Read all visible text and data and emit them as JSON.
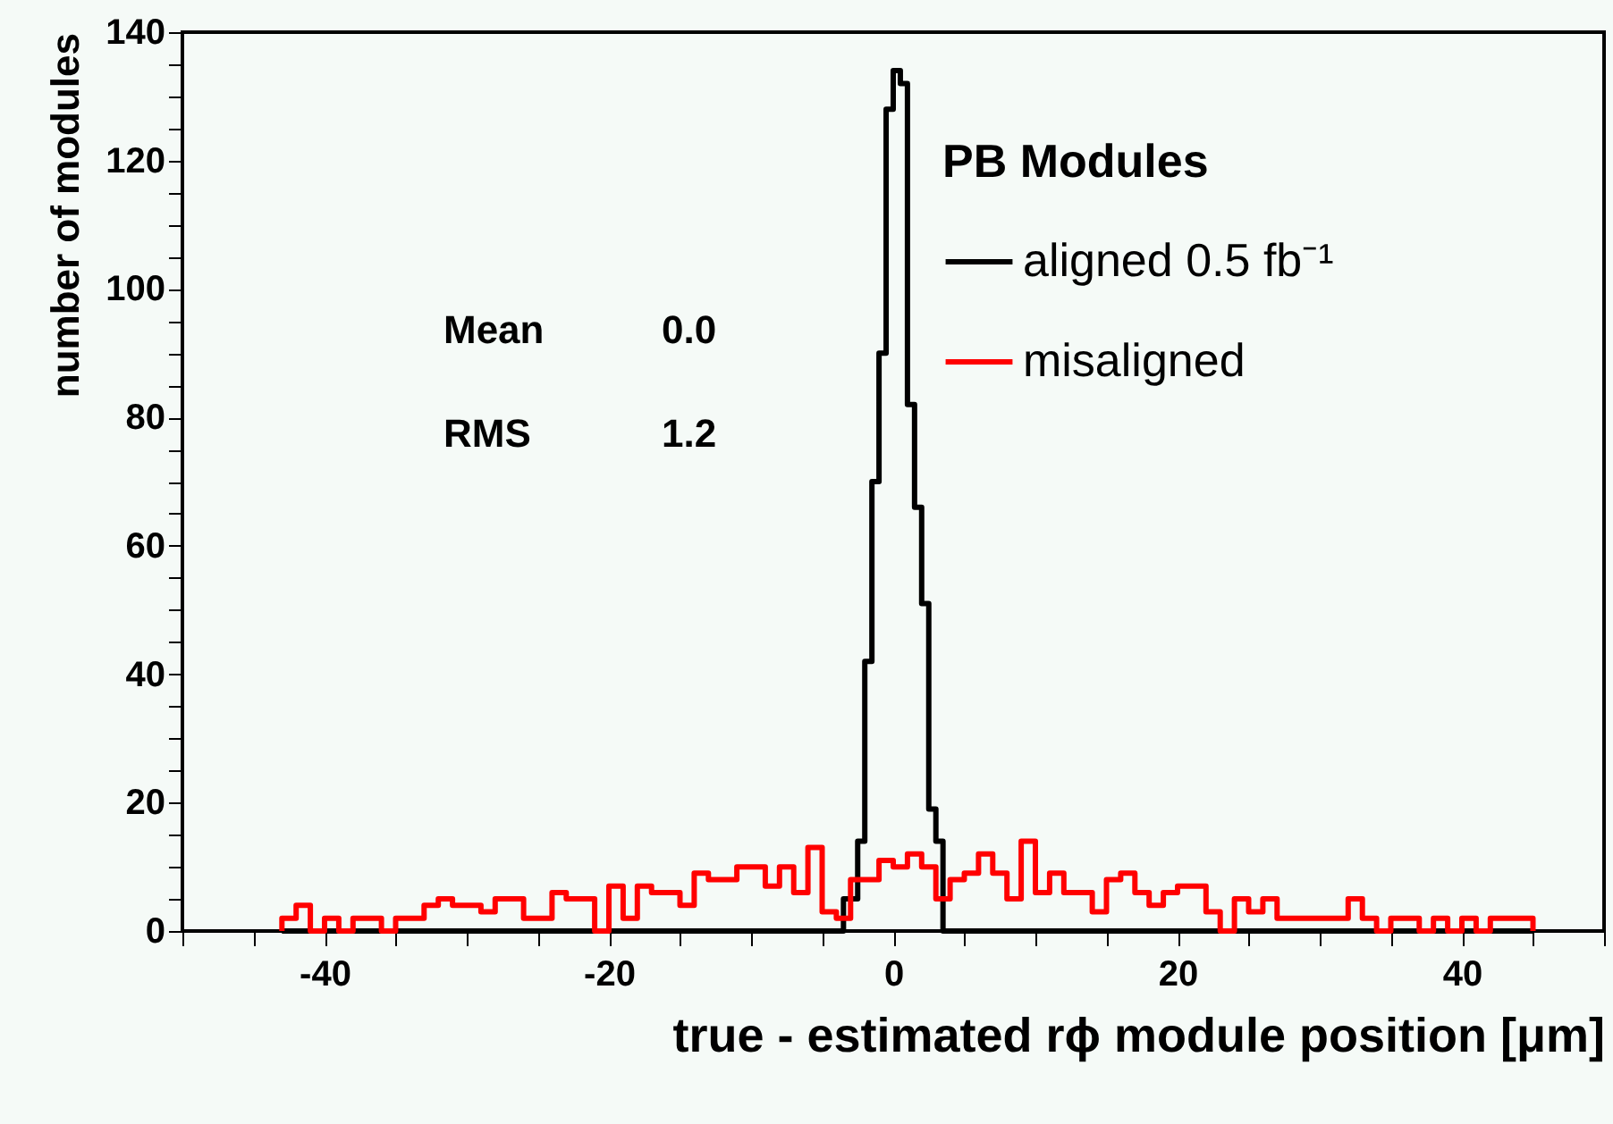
{
  "chart_data": {
    "type": "histogram",
    "xlabel": "true - estimated rϕ module position [μm]",
    "ylabel": "number of modules",
    "legend_title": "PB Modules",
    "legend": "top right",
    "grid": false,
    "annotations": [
      "Mean 0.0",
      "RMS 1.2"
    ],
    "xlim": [
      -50,
      50
    ],
    "ylim": [
      0,
      140
    ],
    "xticks": [
      {
        "value": -50,
        "label": null
      },
      {
        "value": -45,
        "label": null
      },
      -40,
      {
        "value": -35,
        "label": null
      },
      {
        "value": -30,
        "label": null
      },
      {
        "value": -25,
        "label": null
      },
      -20,
      {
        "value": -15,
        "label": null
      },
      {
        "value": -10,
        "label": null
      },
      {
        "value": -5,
        "label": null
      },
      0,
      {
        "value": 5,
        "label": null
      },
      {
        "value": 10,
        "label": null
      },
      {
        "value": 15,
        "label": null
      },
      20,
      {
        "value": 25,
        "label": null
      },
      {
        "value": 30,
        "label": null
      },
      {
        "value": 35,
        "label": null
      },
      40,
      {
        "value": 45,
        "label": null
      },
      {
        "value": 50,
        "label": null
      }
    ],
    "yticks": [
      0,
      {
        "value": 5,
        "label": null
      },
      {
        "value": 10,
        "label": null
      },
      {
        "value": 15,
        "label": null
      },
      20,
      {
        "value": 25,
        "label": null
      },
      {
        "value": 30,
        "label": null
      },
      {
        "value": 35,
        "label": null
      },
      40,
      {
        "value": 45,
        "label": null
      },
      {
        "value": 50,
        "label": null
      },
      {
        "value": 55,
        "label": null
      },
      60,
      {
        "value": 65,
        "label": null
      },
      {
        "value": 70,
        "label": null
      },
      {
        "value": 75,
        "label": null
      },
      80,
      {
        "value": 85,
        "label": null
      },
      {
        "value": 90,
        "label": null
      },
      {
        "value": 95,
        "label": null
      },
      100,
      {
        "value": 105,
        "label": null
      },
      {
        "value": 110,
        "label": null
      },
      {
        "value": 115,
        "label": null
      },
      120,
      {
        "value": 125,
        "label": null
      },
      {
        "value": 130,
        "label": null
      },
      {
        "value": 135,
        "label": null
      },
      140
    ],
    "bins": [
      -43,
      -42.5,
      -42,
      -41.5,
      -41,
      -40.5,
      -40,
      -39.5,
      -39,
      -38.5,
      -38,
      -37.5,
      -37,
      -36.5,
      -36,
      -35.5,
      -35,
      -34.5,
      -34,
      -33.5,
      -33,
      -32.5,
      -32,
      -31.5,
      -31,
      -30.5,
      -30,
      -29.5,
      -29,
      -28.5,
      -28,
      -27.5,
      -27,
      -26.5,
      -26,
      -25.5,
      -25,
      -24.5,
      -24,
      -23.5,
      -23,
      -22.5,
      -22,
      -21.5,
      -21,
      -20.5,
      -20,
      -19.5,
      -19,
      -18.5,
      -18,
      -17.5,
      -17,
      -16.5,
      -16,
      -15.5,
      -15,
      -14.5,
      -14,
      -13.5,
      -13,
      -12.5,
      -12,
      -11.5,
      -11,
      -10.5,
      -10,
      -9.5,
      -9,
      -8.5,
      -8,
      -7.5,
      -7,
      -6.5,
      -6,
      -5.5,
      -5,
      -4.5,
      -4,
      -3.5,
      -3,
      -2.5,
      -2,
      -1.5,
      -1,
      -0.5,
      0,
      0.5,
      1,
      1.5,
      2,
      2.5,
      3,
      3.5,
      4,
      4.5,
      5,
      5.5,
      6,
      6.5,
      7,
      7.5,
      8,
      8.5,
      9,
      9.5,
      10,
      10.5,
      11,
      11.5,
      12,
      12.5,
      13,
      13.5,
      14,
      14.5,
      15,
      15.5,
      16,
      16.5,
      17,
      17.5,
      18,
      18.5,
      19,
      19.5,
      20,
      20.5,
      21,
      21.5,
      22,
      22.5,
      23,
      23.5,
      24,
      24.5,
      25,
      25.5,
      26,
      26.5,
      27,
      27.5,
      28,
      28.5,
      29,
      29.5,
      30,
      30.5,
      31,
      31.5,
      32,
      32.5,
      33,
      33.5,
      34,
      34.5,
      35,
      35.5,
      36,
      36.5,
      37,
      37.5,
      38,
      38.5,
      39,
      39.5,
      40,
      40.5,
      41,
      41.5,
      42,
      42.5,
      43,
      43.5,
      44,
      44.5,
      45
    ],
    "series": [
      {
        "name": "aligned 0.5 fb⁻¹",
        "color": "#000000",
        "values": [
          0,
          0,
          0,
          0,
          0,
          0,
          0,
          0,
          0,
          0,
          0,
          0,
          0,
          0,
          0,
          0,
          0,
          0,
          0,
          0,
          0,
          0,
          0,
          0,
          0,
          0,
          0,
          0,
          0,
          0,
          0,
          0,
          0,
          0,
          0,
          0,
          0,
          0,
          0,
          0,
          0,
          0,
          0,
          0,
          0,
          0,
          0,
          0,
          0,
          0,
          0,
          0,
          0,
          0,
          0,
          0,
          0,
          0,
          0,
          0,
          0,
          0,
          0,
          0,
          0,
          0,
          0,
          0,
          0,
          0,
          0,
          0,
          0,
          0,
          0,
          0,
          0,
          0,
          0,
          5,
          5,
          14,
          42,
          70,
          90,
          128,
          134,
          132,
          82,
          66,
          51,
          19,
          14,
          0,
          0,
          0,
          0,
          0,
          0,
          0,
          0,
          0,
          0,
          0,
          0,
          0,
          0,
          0,
          0,
          0,
          0,
          0,
          0,
          0,
          0,
          0,
          0,
          0,
          0,
          0,
          0,
          0,
          0,
          0,
          0,
          0,
          0,
          0,
          0,
          0,
          0,
          0,
          0,
          0,
          0,
          0,
          0,
          0,
          0,
          0,
          0,
          0,
          0,
          0,
          0,
          0,
          0,
          0,
          0,
          0,
          0,
          0,
          0,
          0,
          0,
          0,
          0,
          0,
          0,
          0,
          0,
          0,
          0,
          0,
          0,
          0,
          0,
          0,
          0,
          0,
          0,
          0,
          0,
          0,
          0,
          0
        ]
      },
      {
        "name": "misaligned",
        "color": "#ff0000",
        "values": [
          2,
          2,
          4,
          4,
          0,
          0,
          2,
          2,
          0,
          0,
          2,
          2,
          2,
          2,
          0,
          0,
          2,
          2,
          2,
          2,
          4,
          4,
          5,
          5,
          4,
          4,
          4,
          4,
          3,
          3,
          5,
          5,
          5,
          5,
          2,
          2,
          2,
          2,
          6,
          6,
          5,
          5,
          5,
          5,
          0,
          0,
          7,
          7,
          2,
          2,
          7,
          7,
          6,
          6,
          6,
          6,
          4,
          4,
          9,
          9,
          8,
          8,
          8,
          8,
          10,
          10,
          10,
          10,
          7,
          7,
          10,
          10,
          6,
          6,
          13,
          13,
          3,
          3,
          2,
          2,
          8,
          8,
          8,
          8,
          11,
          11,
          10,
          10,
          12,
          12,
          10,
          10,
          5,
          5,
          8,
          8,
          9,
          9,
          12,
          12,
          9,
          9,
          5,
          5,
          14,
          14,
          6,
          6,
          9,
          9,
          6,
          6,
          6,
          6,
          3,
          3,
          8,
          8,
          9,
          9,
          6,
          6,
          4,
          4,
          6,
          6,
          7,
          7,
          7,
          7,
          3,
          3,
          0,
          0,
          5,
          5,
          3,
          3,
          5,
          5,
          2,
          2,
          2,
          2,
          2,
          2,
          2,
          2,
          2,
          2,
          5,
          5,
          2,
          2,
          0,
          0,
          2,
          2,
          2,
          2,
          0,
          0,
          2,
          2,
          0,
          0,
          2,
          2,
          0,
          0,
          2,
          2,
          2,
          2,
          2,
          2
        ]
      }
    ]
  }
}
